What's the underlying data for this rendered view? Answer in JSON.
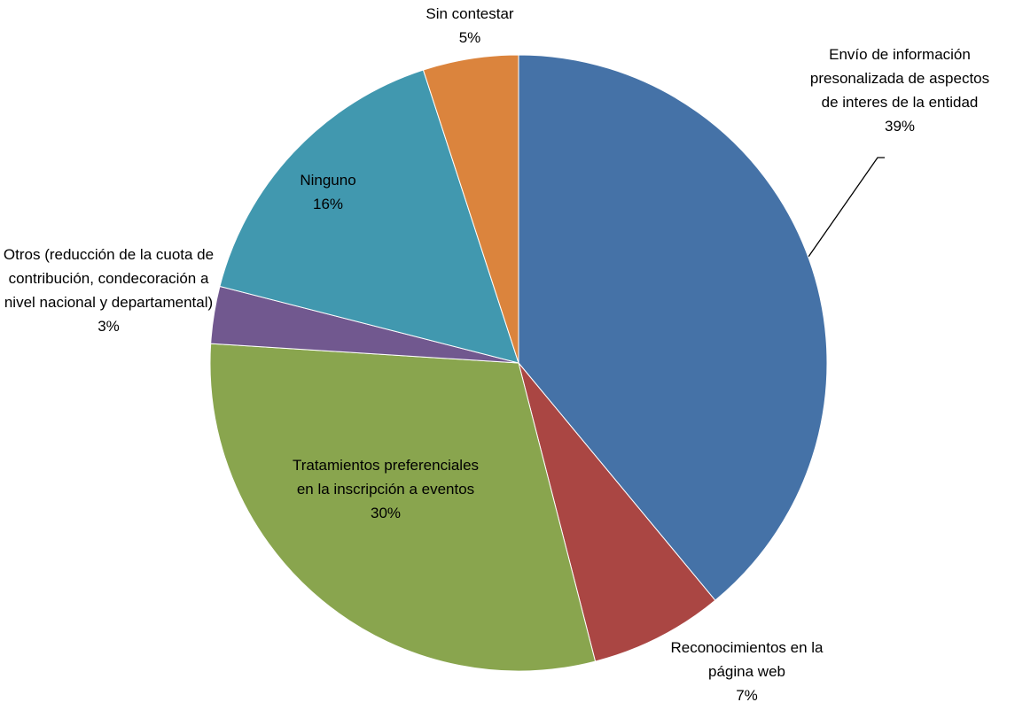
{
  "chart_data": {
    "type": "pie",
    "categories": [
      "Envío de información presonalizada de aspectos de interes de la entidad",
      "Reconocimientos en la página web",
      "Tratamientos preferenciales en la inscripción a eventos",
      "Otros (reducción de la cuota de contribución, condecoración a nivel nacional y departamental)",
      "Ninguno",
      "Sin contestar"
    ],
    "values": [
      39,
      7,
      30,
      3,
      16,
      5
    ],
    "value_labels": [
      "39%",
      "7%",
      "30%",
      "3%",
      "16%",
      "5%"
    ],
    "colors": [
      "#4572a7",
      "#aa4643",
      "#89a54e",
      "#71588f",
      "#4198af",
      "#db843d"
    ]
  }
}
